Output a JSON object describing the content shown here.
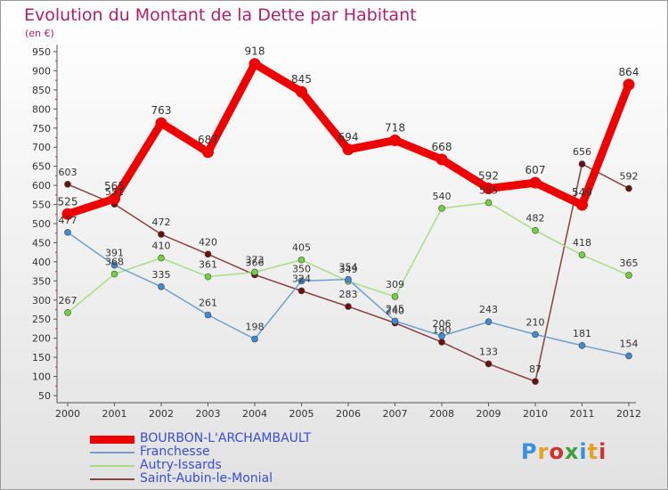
{
  "title": "Evolution du Montant de la Dette par Habitant",
  "subtitle": "(en €)",
  "logo": {
    "text": "Proxiti",
    "colors": [
      "#3a8ee6",
      "#e8a020",
      "#d03030",
      "#40a040",
      "#3a8ee6",
      "#e8a020",
      "#d03030"
    ]
  },
  "chart_data": {
    "type": "line",
    "x": [
      "2000",
      "2001",
      "2002",
      "2003",
      "2004",
      "2005",
      "2006",
      "2007",
      "2008",
      "2009",
      "2010",
      "2011",
      "2012"
    ],
    "ylim": [
      50,
      950
    ],
    "yticks": [
      50,
      100,
      150,
      200,
      250,
      300,
      350,
      400,
      450,
      500,
      550,
      600,
      650,
      700,
      750,
      800,
      850,
      900,
      950
    ],
    "grid": false,
    "legend_position": "bottom-left",
    "series": [
      {
        "name": "BOURBON-L'ARCHAMBAULT",
        "color": "#ee0000",
        "marker": "#ee0000",
        "values": [
          525,
          565,
          763,
          687,
          918,
          845,
          694,
          718,
          668,
          592,
          607,
          549,
          864
        ],
        "labels": [
          "525",
          "565",
          "763",
          "687",
          "918",
          "845",
          "694",
          "718",
          "668",
          "592",
          "607",
          "549",
          "864"
        ]
      },
      {
        "name": "Franchesse",
        "color": "#6f9fcc",
        "marker": "#3f8ad6",
        "values": [
          477,
          391,
          335,
          261,
          198,
          350,
          354,
          245,
          206,
          243,
          210,
          181,
          154
        ],
        "labels": [
          "477",
          "391",
          "335",
          "261",
          "198",
          "350",
          "354",
          "245",
          "206",
          "243",
          "210",
          "181",
          "154"
        ]
      },
      {
        "name": "Autry-Issards",
        "color": "#a6de88",
        "marker": "#72d23c",
        "values": [
          267,
          368,
          410,
          361,
          373,
          405,
          349,
          309,
          540,
          555,
          482,
          418,
          365
        ],
        "labels": [
          "267",
          "368",
          "410",
          "361",
          "373",
          "405",
          "349",
          "309",
          "540",
          "555",
          "482",
          "418",
          "365"
        ]
      },
      {
        "name": "Saint-Aubin-le-Monial",
        "color": "#8a4040",
        "marker": "#6a1010",
        "values": [
          603,
          551,
          472,
          420,
          366,
          324,
          283,
          240,
          190,
          133,
          87,
          656,
          592
        ],
        "labels": [
          "603",
          "551",
          "472",
          "420",
          "366",
          "324",
          "283",
          "240",
          "190",
          "133",
          "87",
          "656",
          "592"
        ]
      }
    ]
  }
}
